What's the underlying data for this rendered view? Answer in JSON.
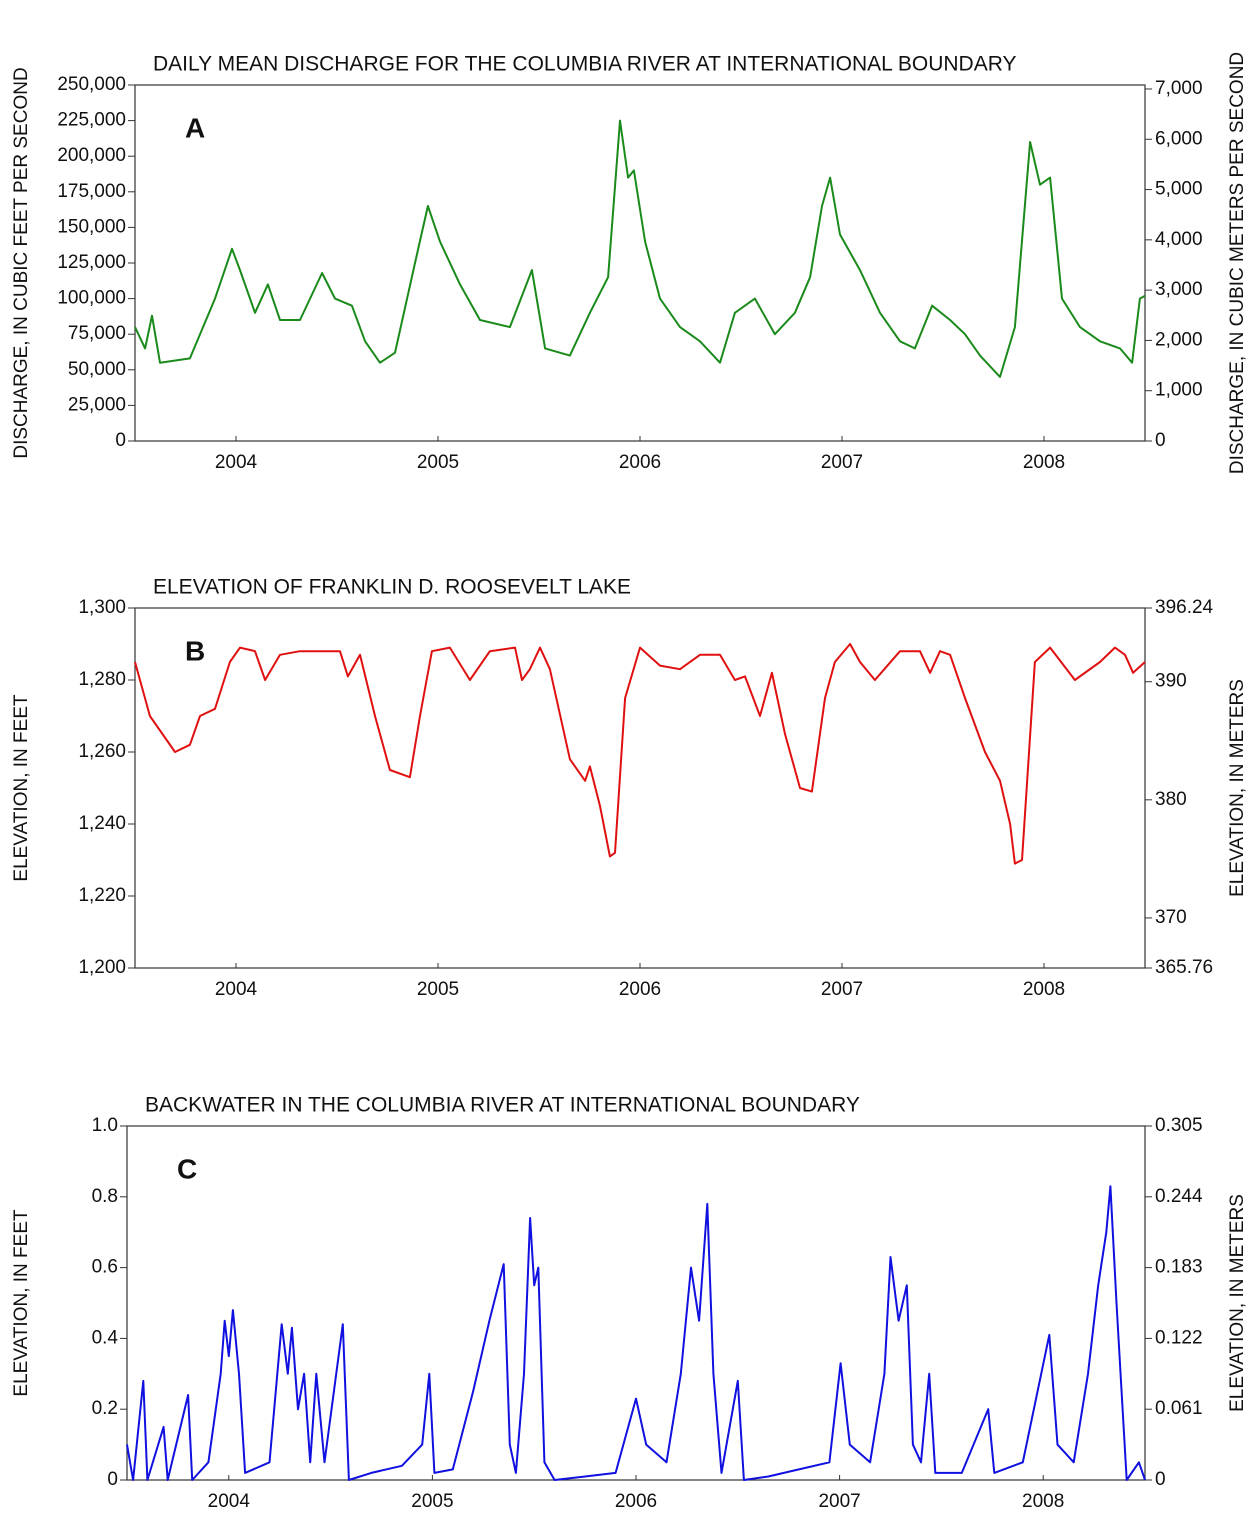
{
  "chart_data": [
    {
      "type": "line",
      "title": "DAILY MEAN DISCHARGE FOR THE COLUMBIA RIVER AT INTERNATIONAL BOUNDARY",
      "annotation": "A",
      "ylabel": "DISCHARGE, IN CUBIC FEET PER SECOND",
      "y2label": "DISCHARGE, IN CUBIC METERS PER SECOND",
      "xlim": [
        2003.5,
        2008.5
      ],
      "xticks": [
        2004,
        2005,
        2006,
        2007,
        2008
      ],
      "ylim": [
        0,
        250000
      ],
      "yticks": [
        0,
        {
          "value": 25000,
          "label": "25,000"
        },
        {
          "value": 50000,
          "label": "50,000"
        },
        {
          "value": 75000,
          "label": "75,000"
        },
        {
          "value": 100000,
          "label": "100,000"
        },
        {
          "value": 125000,
          "label": "125,000"
        },
        {
          "value": 150000,
          "label": "150,000"
        },
        {
          "value": 175000,
          "label": "175,000"
        },
        {
          "value": 200000,
          "label": "200,000"
        },
        {
          "value": 225000,
          "label": "225,000"
        },
        {
          "value": 250000,
          "label": "250,000"
        }
      ],
      "y2lim": [
        0,
        7079
      ],
      "y2ticks": [
        0,
        {
          "value": 1000,
          "label": "1,000"
        },
        {
          "value": 2000,
          "label": "2,000"
        },
        {
          "value": 3000,
          "label": "3,000"
        },
        {
          "value": 4000,
          "label": "4,000"
        },
        {
          "value": 5000,
          "label": "5,000"
        },
        {
          "value": 6000,
          "label": "6,000"
        },
        {
          "value": 7000,
          "label": "7,000"
        }
      ],
      "color": "#1a8a1a",
      "x": [
        2003.5,
        2003.55,
        2003.584,
        2003.624,
        2003.772,
        2003.896,
        2003.98,
        2004.02,
        2004.094,
        2004.158,
        2004.218,
        2004.317,
        2004.426,
        2004.49,
        2004.574,
        2004.639,
        2004.713,
        2004.787,
        2004.886,
        2004.95,
        2005.01,
        2005.109,
        2005.208,
        2005.356,
        2005.465,
        2005.53,
        2005.653,
        2005.752,
        2005.842,
        2005.901,
        2005.941,
        2005.97,
        2006.025,
        2006.099,
        2006.198,
        2006.297,
        2006.396,
        2006.47,
        2006.569,
        2006.668,
        2006.767,
        2006.842,
        2006.901,
        2006.941,
        2006.99,
        2007.089,
        2007.188,
        2007.287,
        2007.361,
        2007.446,
        2007.535,
        2007.609,
        2007.683,
        2007.782,
        2007.856,
        2007.931,
        2007.98,
        2008.03,
        2008.089,
        2008.178,
        2008.277,
        2008.376,
        2008.436,
        2008.475,
        2008.5
      ],
      "values": [
        80000,
        65000,
        88000,
        55000,
        58000,
        100000,
        135000,
        120000,
        90000,
        110000,
        85000,
        85000,
        118000,
        100000,
        95000,
        70000,
        55000,
        62000,
        125000,
        165000,
        140000,
        110000,
        85000,
        80000,
        120000,
        65000,
        60000,
        90000,
        115000,
        225000,
        185000,
        190000,
        140000,
        100000,
        80000,
        70000,
        55000,
        90000,
        100000,
        75000,
        90000,
        115000,
        165000,
        185000,
        145000,
        120000,
        90000,
        70000,
        65000,
        95000,
        85000,
        75000,
        60000,
        45000,
        80000,
        210000,
        180000,
        185000,
        100000,
        80000,
        70000,
        65000,
        55000,
        100000,
        102000
      ]
    },
    {
      "type": "line",
      "title": "ELEVATION OF FRANKLIN D. ROOSEVELT LAKE",
      "annotation": "B",
      "ylabel": "ELEVATION, IN FEET",
      "y2label": "ELEVATION, IN METERS",
      "xlim": [
        2003.5,
        2008.5
      ],
      "xticks": [
        2004,
        2005,
        2006,
        2007,
        2008
      ],
      "ylim": [
        1200,
        1300
      ],
      "yticks": [
        {
          "value": 1200,
          "label": "1,200"
        },
        {
          "value": 1220,
          "label": "1,220"
        },
        {
          "value": 1240,
          "label": "1,240"
        },
        {
          "value": 1260,
          "label": "1,260"
        },
        {
          "value": 1280,
          "label": "1,280"
        },
        {
          "value": 1300,
          "label": "1,300"
        }
      ],
      "y2lim": [
        365.76,
        396.24
      ],
      "y2ticks": [
        365.76,
        370,
        380,
        390,
        396.24
      ],
      "color": "#e01010",
      "x": [
        2003.5,
        2003.574,
        2003.698,
        2003.772,
        2003.822,
        2003.896,
        2003.97,
        2004.02,
        2004.094,
        2004.144,
        2004.218,
        2004.317,
        2004.515,
        2004.554,
        2004.614,
        2004.688,
        2004.762,
        2004.861,
        2004.911,
        2004.97,
        2005.059,
        2005.158,
        2005.257,
        2005.381,
        2005.416,
        2005.455,
        2005.505,
        2005.554,
        2005.653,
        2005.728,
        2005.752,
        2005.802,
        2005.851,
        2005.876,
        2005.926,
        2006.0,
        2006.099,
        2006.198,
        2006.297,
        2006.396,
        2006.47,
        2006.52,
        2006.594,
        2006.653,
        2006.718,
        2006.792,
        2006.851,
        2006.916,
        2006.965,
        2007.04,
        2007.089,
        2007.163,
        2007.287,
        2007.386,
        2007.436,
        2007.485,
        2007.535,
        2007.609,
        2007.708,
        2007.782,
        2007.832,
        2007.856,
        2007.891,
        2007.955,
        2008.03,
        2008.153,
        2008.277,
        2008.351,
        2008.401,
        2008.441,
        2008.5
      ],
      "values": [
        1285,
        1270,
        1260,
        1262,
        1270,
        1272,
        1285,
        1289,
        1288,
        1280,
        1287,
        1288,
        1288,
        1281,
        1287,
        1270,
        1255,
        1253,
        1270,
        1288,
        1289,
        1280,
        1288,
        1289,
        1280,
        1283,
        1289,
        1283,
        1258,
        1252,
        1256,
        1245,
        1231,
        1232,
        1275,
        1289,
        1284,
        1283,
        1287,
        1287,
        1280,
        1281,
        1270,
        1282,
        1265,
        1250,
        1249,
        1275,
        1285,
        1290,
        1285,
        1280,
        1288,
        1288,
        1282,
        1288,
        1287,
        1275,
        1260,
        1252,
        1240,
        1229,
        1230,
        1285,
        1289,
        1280,
        1285,
        1289,
        1287,
        1282,
        1285
      ]
    },
    {
      "type": "line",
      "title": "BACKWATER IN THE COLUMBIA RIVER AT INTERNATIONAL BOUNDARY",
      "annotation": "C",
      "ylabel": "ELEVATION, IN FEET",
      "y2label": "ELEVATION, IN METERS",
      "xlim": [
        2003.5,
        2008.5
      ],
      "xticks": [
        2004,
        2005,
        2006,
        2007,
        2008
      ],
      "ylim": [
        0,
        1
      ],
      "yticks": [
        0,
        0.2,
        0.4,
        0.6,
        0.8,
        {
          "value": 1,
          "label": "1.0"
        }
      ],
      "y2lim": [
        0,
        0.305
      ],
      "y2ticks": [
        0,
        0.061,
        0.122,
        0.183,
        0.244,
        0.305
      ],
      "color": "#1010e0",
      "x": [
        2003.5,
        2003.53,
        2003.58,
        2003.6,
        2003.68,
        2003.7,
        2003.8,
        2003.82,
        2003.9,
        2003.96,
        2003.98,
        2004.0,
        2004.02,
        2004.05,
        2004.08,
        2004.2,
        2004.26,
        2004.29,
        2004.31,
        2004.34,
        2004.37,
        2004.4,
        2004.43,
        2004.47,
        2004.56,
        2004.59,
        2004.7,
        2004.85,
        2004.95,
        2004.985,
        2005.01,
        2005.1,
        2005.2,
        2005.28,
        2005.35,
        2005.38,
        2005.41,
        2005.45,
        2005.48,
        2005.5,
        2005.52,
        2005.55,
        2005.6,
        2005.75,
        2005.9,
        2006.0,
        2006.05,
        2006.15,
        2006.22,
        2006.27,
        2006.31,
        2006.35,
        2006.38,
        2006.42,
        2006.5,
        2006.53,
        2006.65,
        2006.8,
        2006.95,
        2007.005,
        2007.05,
        2007.15,
        2007.22,
        2007.25,
        2007.29,
        2007.33,
        2007.36,
        2007.4,
        2007.44,
        2007.47,
        2007.6,
        2007.73,
        2007.76,
        2007.9,
        2008.03,
        2008.07,
        2008.15,
        2008.22,
        2008.27,
        2008.31,
        2008.33,
        2008.36,
        2008.39,
        2008.41,
        2008.47,
        2008.5
      ],
      "values": [
        0.1,
        0,
        0.28,
        0,
        0.15,
        0,
        0.24,
        0,
        0.05,
        0.3,
        0.45,
        0.35,
        0.48,
        0.3,
        0.02,
        0.05,
        0.44,
        0.3,
        0.43,
        0.2,
        0.3,
        0.05,
        0.3,
        0.05,
        0.44,
        0,
        0.02,
        0.04,
        0.1,
        0.3,
        0.02,
        0.03,
        0.25,
        0.45,
        0.61,
        0.1,
        0.02,
        0.3,
        0.74,
        0.55,
        0.6,
        0.05,
        0,
        0.01,
        0.02,
        0.23,
        0.1,
        0.05,
        0.3,
        0.6,
        0.45,
        0.78,
        0.3,
        0.02,
        0.28,
        0,
        0.01,
        0.03,
        0.05,
        0.33,
        0.1,
        0.05,
        0.3,
        0.63,
        0.45,
        0.55,
        0.1,
        0.05,
        0.3,
        0.02,
        0.02,
        0.2,
        0.02,
        0.05,
        0.41,
        0.1,
        0.05,
        0.3,
        0.55,
        0.7,
        0.83,
        0.5,
        0.2,
        0,
        0.05,
        0
      ]
    }
  ]
}
